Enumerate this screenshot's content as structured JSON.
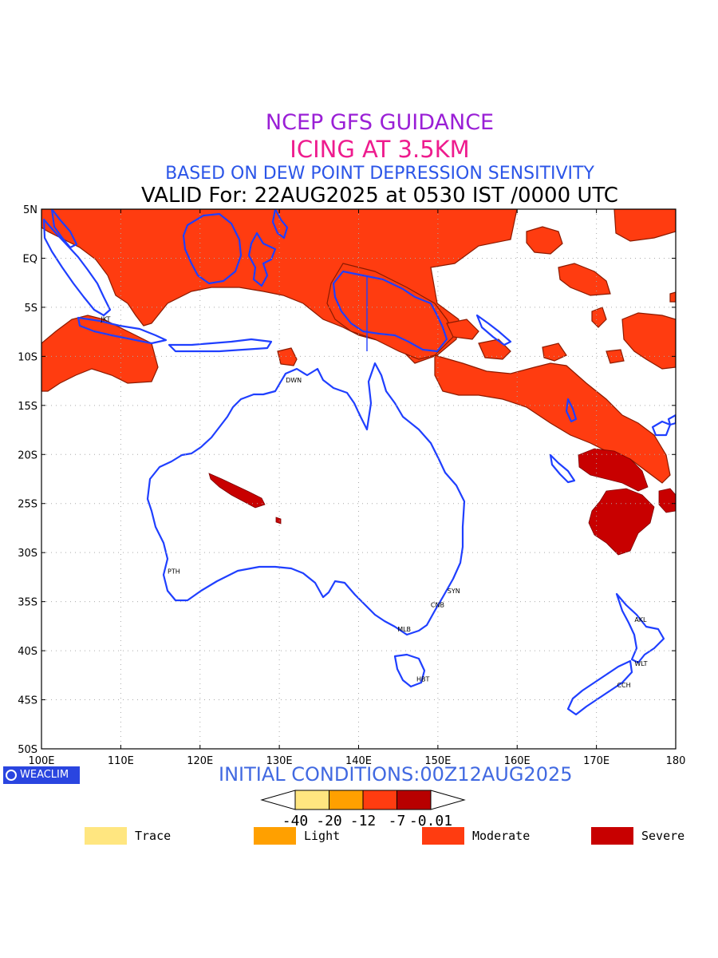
{
  "header": {
    "line1": "NCEP GFS GUIDANCE",
    "line2": "ICING AT 3.5KM",
    "line3": "BASED ON DEW POINT DEPRESSION SENSITIVITY",
    "line4": "VALID For: 22AUG2025 at 0530 IST /0000 UTC"
  },
  "axes": {
    "lat_labels": [
      "5N",
      "EQ",
      "5S",
      "10S",
      "15S",
      "20S",
      "25S",
      "30S",
      "35S",
      "40S",
      "45S",
      "50S"
    ],
    "lon_labels": [
      "100E",
      "110E",
      "120E",
      "130E",
      "140E",
      "150E",
      "160E",
      "170E",
      "180"
    ]
  },
  "stations": [
    {
      "name": "JKT",
      "lon": 107.5,
      "lat": -6.2
    },
    {
      "name": "DWN",
      "lon": 130.8,
      "lat": -12.4
    },
    {
      "name": "PTH",
      "lon": 115.9,
      "lat": -31.9
    },
    {
      "name": "SYN",
      "lon": 151.2,
      "lat": -33.9
    },
    {
      "name": "CNB",
      "lon": 149.1,
      "lat": -35.3
    },
    {
      "name": "MLB",
      "lon": 144.9,
      "lat": -37.8
    },
    {
      "name": "HBT",
      "lon": 147.3,
      "lat": -42.9
    },
    {
      "name": "AKL",
      "lon": 174.8,
      "lat": -36.8
    },
    {
      "name": "WLT",
      "lon": 174.8,
      "lat": -41.3
    },
    {
      "name": "CCH",
      "lon": 172.6,
      "lat": -43.5
    }
  ],
  "initial_conditions": "INITIAL CONDITIONS:00Z12AUG2025",
  "logo_text": "WEACLIM",
  "colorbar": {
    "colors": [
      "#ffe680",
      "#ffa000",
      "#ff3c10",
      "#b80000"
    ],
    "tick_labels": [
      "-40",
      "-20",
      "-12",
      "-7",
      "-0.01"
    ]
  },
  "legend": [
    {
      "label": "Trace",
      "color": "#ffe680"
    },
    {
      "label": "Light",
      "color": "#ffa000"
    },
    {
      "label": "Moderate",
      "color": "#ff3c10"
    },
    {
      "label": "Severe",
      "color": "#c80000"
    }
  ],
  "colors": {
    "coast": "#1f3fff",
    "moderate": "#ff3c10",
    "moderate_edge": "#8b1a00",
    "severe": "#c80000"
  }
}
